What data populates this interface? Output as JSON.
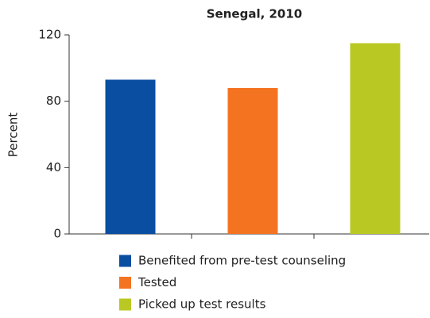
{
  "chart_data": {
    "type": "bar",
    "title": "Senegal, 2010",
    "ylabel": "Percent",
    "categories": [
      "Benefited from pre-test counseling",
      "Tested",
      "Picked up test results"
    ],
    "values": [
      93,
      88,
      115
    ],
    "colors": [
      "#0a4ea2",
      "#f47321",
      "#b9c823"
    ],
    "ylim": [
      0,
      120
    ],
    "yticks": [
      0,
      40,
      80,
      120
    ],
    "grid": false
  }
}
